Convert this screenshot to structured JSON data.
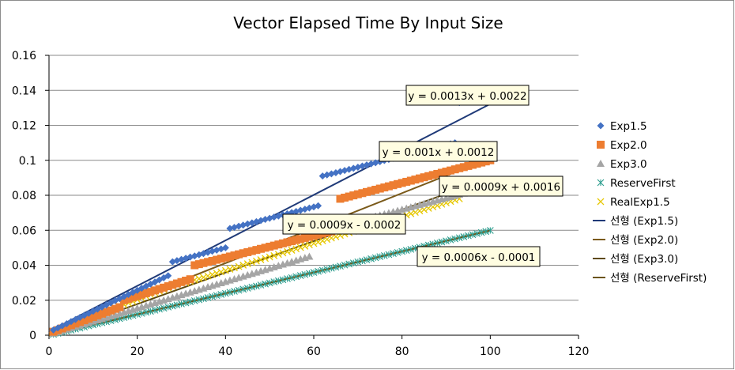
{
  "chart_data": {
    "type": "scatter",
    "title": "Vector Elapsed Time By Input Size",
    "xlabel": "",
    "ylabel": "",
    "xlim": [
      0,
      120
    ],
    "ylim": [
      0,
      0.16
    ],
    "x_ticks": [
      "0",
      "20",
      "40",
      "60",
      "80",
      "100",
      "120"
    ],
    "y_ticks": [
      "0",
      "0.02",
      "0.04",
      "0.06",
      "0.08",
      "0.1",
      "0.12",
      "0.14",
      "0.16"
    ],
    "grid": "horizontal",
    "legend_position": "right",
    "series": [
      {
        "name": "Exp1.5",
        "marker": "diamond",
        "color": "#4472C4",
        "segments": [
          {
            "x_start": 1,
            "x_end": 27,
            "y_start": 0.003,
            "y_end": 0.034
          },
          {
            "x_start": 28,
            "x_end": 40,
            "y_start": 0.042,
            "y_end": 0.05
          },
          {
            "x_start": 41,
            "x_end": 61,
            "y_start": 0.061,
            "y_end": 0.074
          },
          {
            "x_start": 62,
            "x_end": 92,
            "y_start": 0.091,
            "y_end": 0.11
          },
          {
            "x_start": 93,
            "x_end": 100,
            "y_start": 0.133,
            "y_end": 0.139
          }
        ]
      },
      {
        "name": "Exp2.0",
        "marker": "square",
        "color": "#ED7D31",
        "segments": [
          {
            "x_start": 1,
            "x_end": 16,
            "y_start": 0.002,
            "y_end": 0.016
          },
          {
            "x_start": 17,
            "x_end": 32,
            "y_start": 0.02,
            "y_end": 0.032
          },
          {
            "x_start": 33,
            "x_end": 65,
            "y_start": 0.04,
            "y_end": 0.06
          },
          {
            "x_start": 66,
            "x_end": 100,
            "y_start": 0.078,
            "y_end": 0.1
          }
        ]
      },
      {
        "name": "Exp3.0",
        "marker": "triangle",
        "color": "#A5A5A5",
        "segments": [
          {
            "x_start": 1,
            "x_end": 59,
            "y_start": 0.001,
            "y_end": 0.045
          },
          {
            "x_start": 62,
            "x_end": 100,
            "y_start": 0.06,
            "y_end": 0.085
          }
        ]
      },
      {
        "name": "ReserveFirst",
        "marker": "asterisk",
        "color": "#2E9E8F",
        "segments": [
          {
            "x_start": 1,
            "x_end": 100,
            "y_start": 0.0005,
            "y_end": 0.0599
          }
        ]
      },
      {
        "name": "RealExp1.5",
        "marker": "x",
        "color": "#E6C700",
        "segments": [
          {
            "x_start": 1,
            "x_end": 30,
            "y_start": 0.002,
            "y_end": 0.03
          },
          {
            "x_start": 31,
            "x_end": 93,
            "y_start": 0.03,
            "y_end": 0.078
          }
        ]
      }
    ],
    "trendlines": [
      {
        "name": "선형 (Exp1.5)",
        "color": "#1F3A78",
        "slope": 0.0013,
        "intercept": 0.0022,
        "x_range": [
          0,
          100
        ],
        "equation": "y = 0.0013x + 0.0022"
      },
      {
        "name": "선형 (Exp2.0)",
        "color": "#7A5A1A",
        "slope": 0.001,
        "intercept": 0.0012,
        "x_range": [
          0,
          100
        ],
        "equation": "y = 0.001x + 0.0012"
      },
      {
        "name": "선형 (Exp3.0)",
        "color": "#5E4A14",
        "slope": 0.0009,
        "intercept": -0.0002,
        "x_range": [
          0,
          100
        ],
        "equation": "y = 0.0009x - 0.0002"
      },
      {
        "name": "선형 (ReserveFirst)",
        "color": "#6B5418",
        "slope": 0.0006,
        "intercept": -0.0001,
        "x_range": [
          0,
          100
        ],
        "equation": "y = 0.0006x - 0.0001"
      }
    ],
    "annotations": [
      "y = 0.0013x + 0.0022",
      "y = 0.001x + 0.0012",
      "y = 0.0009x + 0.0016",
      "y = 0.0009x - 0.0002",
      "y = 0.0006x - 0.0001"
    ]
  }
}
